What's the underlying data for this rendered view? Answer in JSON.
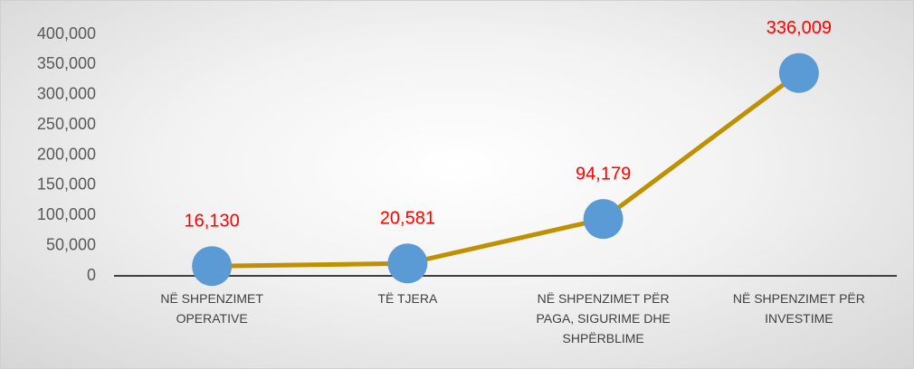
{
  "chart_data": {
    "type": "line",
    "categories": [
      "NË SHPENZIMET OPERATIVE",
      "TË TJERA",
      "NË SHPENZIMET PËR PAGA, SIGURIME DHE SHPËRBLIME",
      "NË SHPENZIMET PËR INVESTIME"
    ],
    "series": [
      {
        "color": "#bf9000",
        "marker_color": "#5b9bd5",
        "values": [
          16130,
          20581,
          94179,
          336009
        ],
        "value_labels": [
          "16,130",
          "20,581",
          "94,179",
          "336,009"
        ]
      }
    ],
    "ylim": [
      0,
      400000
    ],
    "yticks": [
      0,
      {
        "value": 50000,
        "label": "50,000"
      },
      {
        "value": 100000,
        "label": "100,000"
      },
      {
        "value": 150000,
        "label": "150,000"
      },
      {
        "value": 200000,
        "label": "200,000"
      },
      {
        "value": 250000,
        "label": "250,000"
      },
      {
        "value": 300000,
        "label": "300,000"
      },
      {
        "value": 350000,
        "label": "350,000"
      },
      {
        "value": 400000,
        "label": "400,000"
      }
    ],
    "value_label_color": "#ff0000",
    "grid": false
  }
}
